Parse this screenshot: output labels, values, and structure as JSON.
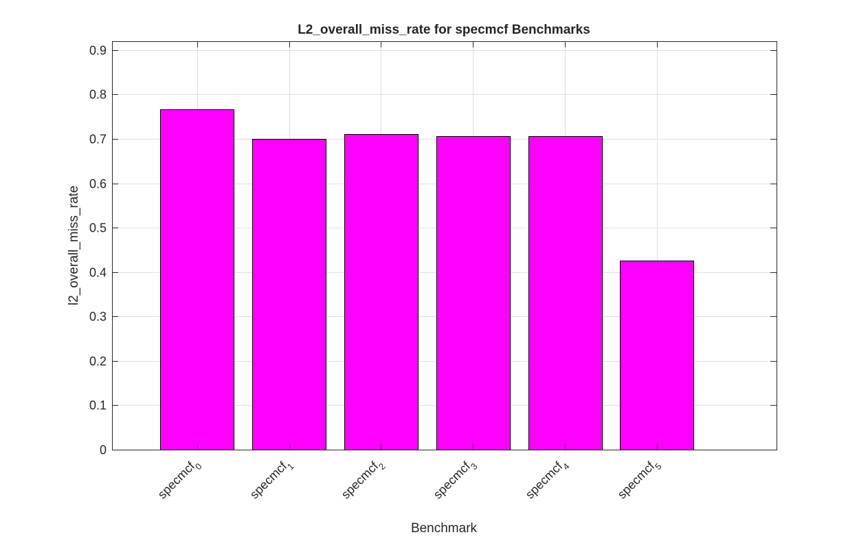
{
  "chart_data": {
    "type": "bar",
    "title": "L2_overall_miss_rate for specmcf Benchmarks",
    "xlabel": "Benchmark",
    "ylabel": "l2_overall_miss_rate",
    "categories": [
      {
        "base": "specmcf",
        "sub": "0"
      },
      {
        "base": "specmcf",
        "sub": "1"
      },
      {
        "base": "specmcf",
        "sub": "2"
      },
      {
        "base": "specmcf",
        "sub": "3"
      },
      {
        "base": "specmcf",
        "sub": "4"
      },
      {
        "base": "specmcf",
        "sub": "5"
      }
    ],
    "values": [
      0.767,
      0.7,
      0.711,
      0.707,
      0.707,
      0.426
    ],
    "ylim": [
      0,
      0.92
    ],
    "xlim": [
      0.075,
      7.3
    ],
    "yticks": [
      0,
      0.1,
      0.2,
      0.3,
      0.4,
      0.5,
      0.6,
      0.7,
      0.8,
      0.9
    ],
    "ytick_labels": [
      "0",
      "0.1",
      "0.2",
      "0.3",
      "0.4",
      "0.5",
      "0.6",
      "0.7",
      "0.8",
      "0.9"
    ],
    "bar_width": 0.8,
    "bar_color": "#ff00ff",
    "grid": true
  }
}
